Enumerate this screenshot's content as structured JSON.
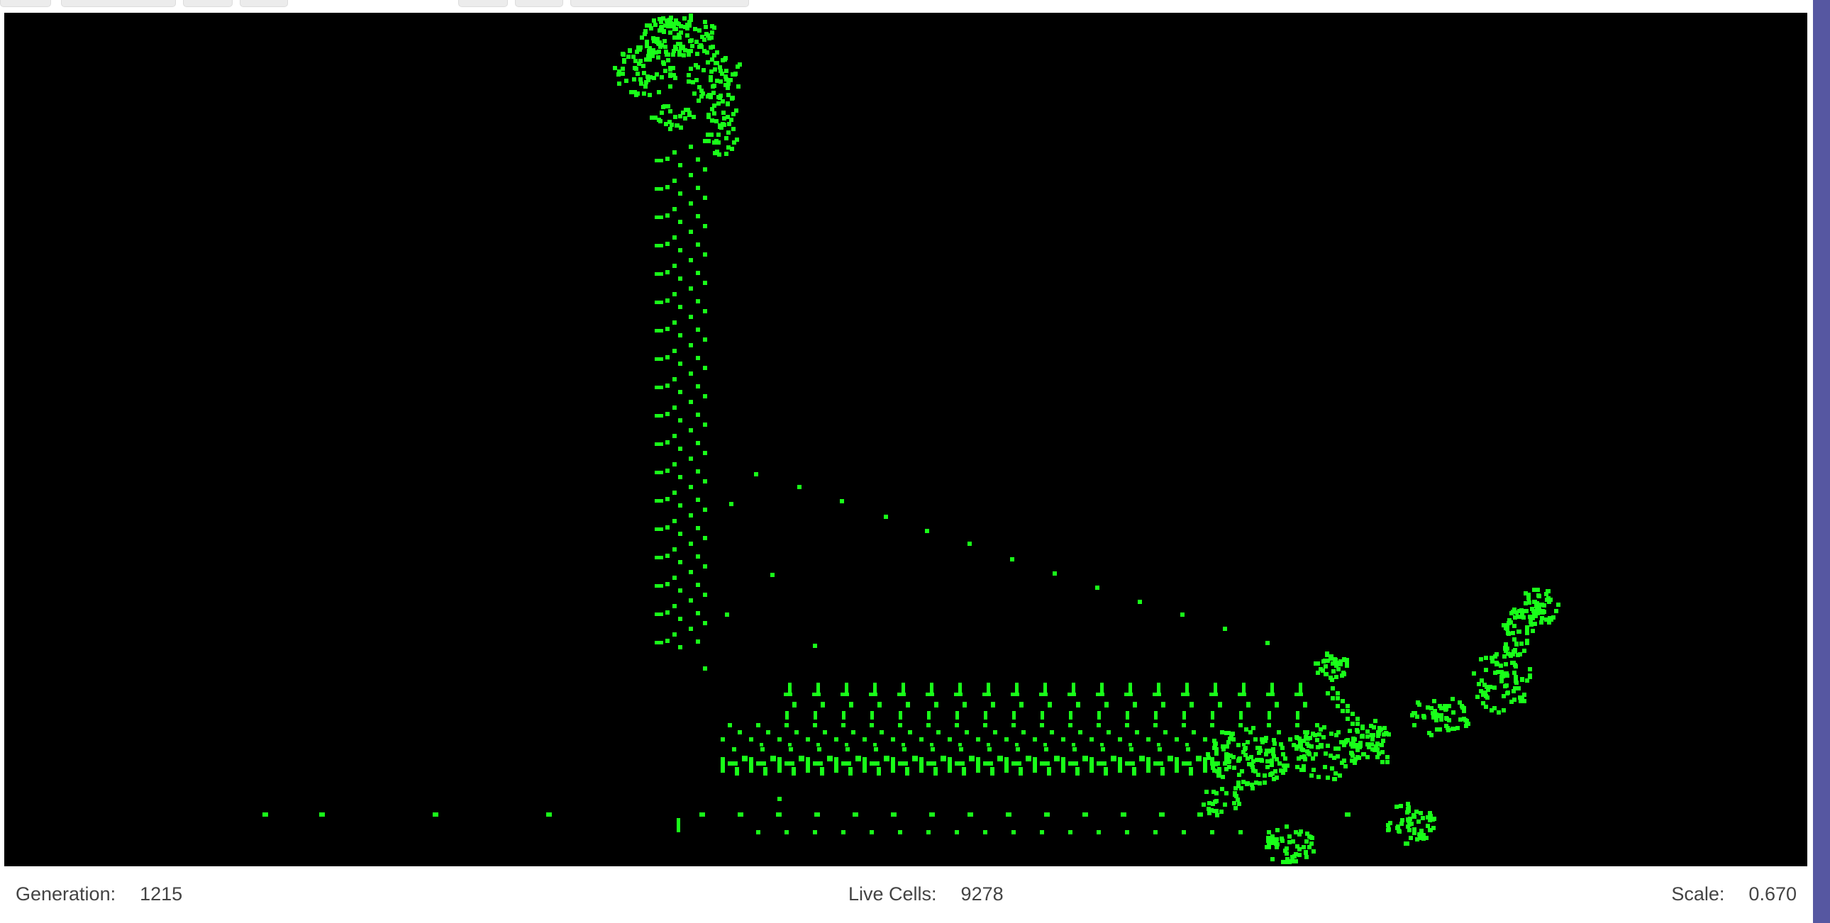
{
  "app": {
    "theme_colors": {
      "background": "#000000",
      "live_cell": "#19ff19",
      "scrollbar": "#5657a1",
      "status_text": "#444444"
    }
  },
  "toolbar": {
    "buttons": [
      {
        "icon": "toolbar-button"
      },
      {
        "icon": "toolbar-button"
      },
      {
        "icon": "toolbar-button"
      },
      {
        "icon": "toolbar-button"
      },
      {
        "icon": "toolbar-button"
      },
      {
        "icon": "toolbar-button"
      },
      {
        "icon": "toolbar-button"
      }
    ]
  },
  "status": {
    "generation_label": "Generation:",
    "generation_value": "1215",
    "live_cells_label": "Live Cells:",
    "live_cells_value": "9278",
    "scale_label": "Scale:",
    "scale_value": "0.670"
  }
}
